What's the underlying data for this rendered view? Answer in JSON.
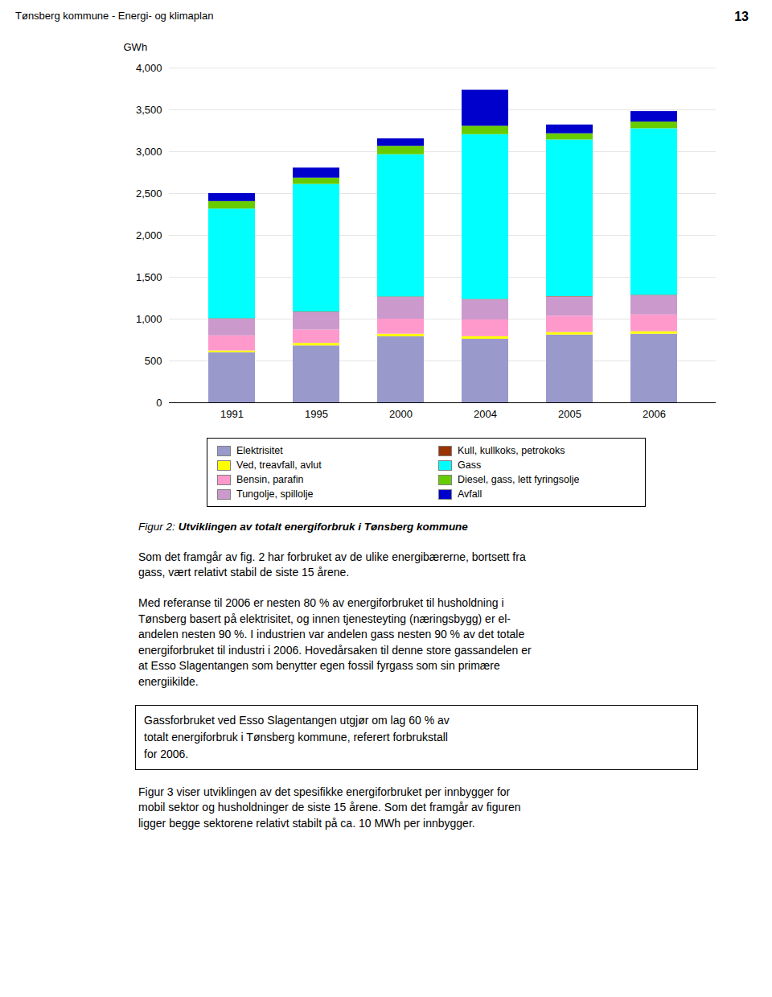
{
  "chart_data": {
    "type": "bar",
    "stacked": true,
    "title": "Figur 2:",
    "subtitle": "Utviklingen av totalt energiforbruk i Tønsberg kommune",
    "ylabel": "GWh",
    "categories": [
      "1991",
      "1995",
      "2000",
      "2004",
      "2005",
      "2006"
    ],
    "series": [
      {
        "name": "Elektrisitet",
        "color": "#9999CC",
        "values": [
          600,
          680,
          790,
          760,
          810,
          820
        ]
      },
      {
        "name": "Ved, treavfall, avlut",
        "color": "#FFFF00",
        "values": [
          20,
          30,
          30,
          30,
          30,
          30
        ]
      },
      {
        "name": "Bensin, parafin",
        "color": "#FF99CC",
        "values": [
          180,
          160,
          180,
          200,
          195,
          200
        ]
      },
      {
        "name": "Tungolje, spillolje",
        "color": "#CC99CC",
        "values": [
          200,
          210,
          260,
          240,
          230,
          230
        ]
      },
      {
        "name": "Kull, kullkoks, petrokoks",
        "color": "#993300",
        "values": [
          5,
          5,
          5,
          5,
          5,
          5
        ]
      },
      {
        "name": "Gass",
        "color": "#00FFFF",
        "values": [
          1310,
          1525,
          1700,
          1970,
          1870,
          1990
        ]
      },
      {
        "name": "Diesel, gass, lett fyringsolje",
        "color": "#66CC00",
        "values": [
          90,
          75,
          100,
          100,
          75,
          80
        ]
      },
      {
        "name": "Avfall",
        "color": "#0000CC",
        "values": [
          95,
          120,
          90,
          430,
          105,
          125
        ]
      }
    ],
    "ylim": [
      0,
      4000
    ],
    "yticks": [
      0,
      500,
      1000,
      1500,
      2000,
      2500,
      3000,
      3500,
      4000
    ],
    "grid": true,
    "legend": "bottom",
    "annotations": [
      "Tønsberg kommune - Energi- og klimaplan",
      "13",
      "Som det framgår av fig. 2 har forbruket av de ulike energibærerne, bortsett fra\ngass, vært relativt stabil de siste 15 årene.",
      "Med referanse til 2006 er nesten 80 % av energiforbruket til husholdning i\nTønsberg basert på elektrisitet, og innen tjenesteyting (næringsbygg) er el-\nandelen nesten 90 %. I industrien var andelen gass nesten 90 % av det totale\nenergiforbruket til industri i 2006. Hovedårsaken til denne store gassandelen er\nat Esso Slagentangen som benytter egen fossil fyrgass som sin primære\nenergiikilde.",
      "Gassforbruket ved Esso Slagentangen utgjør om lag 60 % av\ntotalt energiforbruk i Tønsberg kommune, referert forbrukstall\nfor 2006.",
      "Figur 3 viser utviklingen av det spesifikke energiforbruket per innbygger for\nmobil sektor og husholdninger de siste 15 årene. Som det framgår av figuren\nligger begge sektorene relativt stabilt på ca. 10 MWh per innbygger."
    ]
  }
}
